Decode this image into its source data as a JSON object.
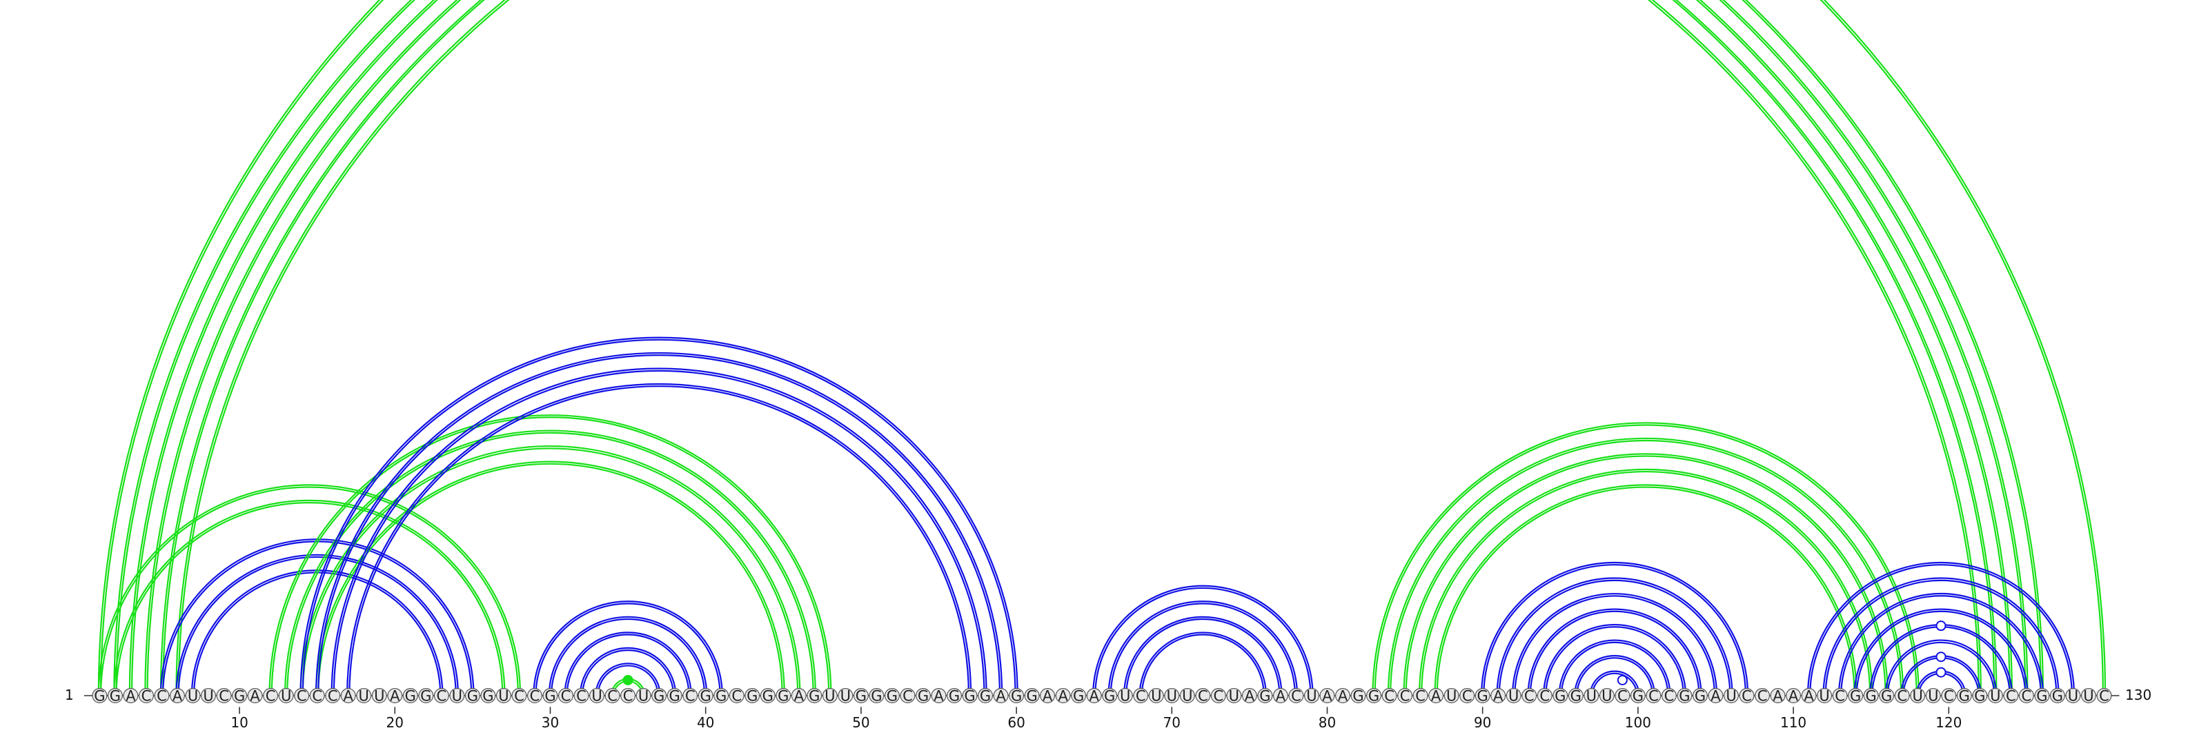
{
  "diagram": {
    "sequence": "GGACCAUUCGACUCCCAUUAGGCUGGUCCGCCUCCUGGCGGCGGGAGUUGGGCGAGGGAGGAAGAGUCUUUCCUAGACUAAGGCCCAUCGAUCCGGUUCGCCGGAUCCAAAUCGGGCUUCGGUCCGGUUC",
    "start_label": "1",
    "end_label": "130",
    "tick_labels": [
      "10",
      "20",
      "30",
      "40",
      "50",
      "60",
      "70",
      "80",
      "90",
      "100",
      "110",
      "120"
    ],
    "colors": {
      "blue": "#1010e6",
      "green": "#18e018",
      "nucleotide_fill": "#e8e8e8",
      "nucleotide_stroke": "#555555",
      "text": "#222222"
    },
    "helices": [
      {
        "color": "green",
        "outer_i": 1,
        "outer_j": 130,
        "count": 1,
        "lines": 2
      },
      {
        "color": "green",
        "outer_i": 2,
        "outer_j": 126,
        "count": 5,
        "lines": 2
      },
      {
        "color": "green",
        "outer_i": 1,
        "outer_j": 28,
        "count": 2,
        "lines": 2
      },
      {
        "color": "blue",
        "outer_i": 5,
        "outer_j": 25,
        "count": 3,
        "lines": 2
      },
      {
        "color": "green",
        "outer_i": 12,
        "outer_j": 48,
        "count": 4,
        "lines": 2
      },
      {
        "color": "blue",
        "outer_i": 14,
        "outer_j": 60,
        "count": 4,
        "lines": 2
      },
      {
        "color": "blue",
        "outer_i": 29,
        "outer_j": 41,
        "count": 5,
        "lines": 2
      },
      {
        "color": "green",
        "outer_i": 34,
        "outer_j": 36,
        "count": 1,
        "lines": 2
      },
      {
        "color": "blue",
        "outer_i": 65,
        "outer_j": 79,
        "count": 4,
        "lines": 2
      },
      {
        "color": "green",
        "outer_i": 83,
        "outer_j": 118,
        "count": 5,
        "lines": 2
      },
      {
        "color": "blue",
        "outer_i": 90,
        "outer_j": 107,
        "count": 8,
        "lines": 2
      },
      {
        "color": "blue",
        "outer_i": 111,
        "outer_j": 128,
        "count": 8,
        "lines": 2
      }
    ],
    "markers": [
      {
        "color": "green",
        "i": 34,
        "j": 36,
        "filled": true
      },
      {
        "color": "blue",
        "i": 98,
        "j": 100,
        "filled": false
      },
      {
        "color": "blue",
        "i": 118,
        "j": 121,
        "filled": false
      },
      {
        "color": "blue",
        "i": 117,
        "j": 122,
        "filled": false
      },
      {
        "color": "blue",
        "i": 115,
        "j": 124,
        "filled": false
      }
    ]
  }
}
